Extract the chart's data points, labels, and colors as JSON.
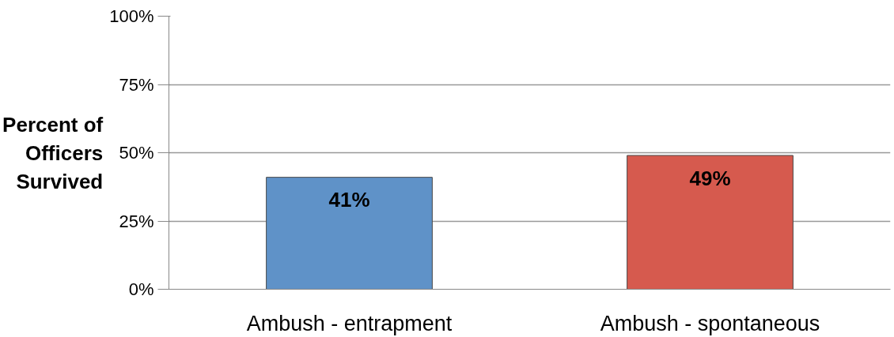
{
  "chart_data": {
    "type": "bar",
    "ylabel": "Percent of Officers Survived",
    "categories": [
      "Ambush - entrapment",
      "Ambush - spontaneous"
    ],
    "values": [
      41,
      49
    ],
    "colors": [
      "#5f92c8",
      "#d65a4e"
    ],
    "value_labels": [
      "41%",
      "49%"
    ],
    "ylim": [
      0,
      100
    ],
    "yticks": [
      {
        "value": 0,
        "label": "0%"
      },
      {
        "value": 25,
        "label": "25%"
      },
      {
        "value": 50,
        "label": "50%"
      },
      {
        "value": 75,
        "label": "75%"
      },
      {
        "value": 100,
        "label": "100%"
      }
    ],
    "grid": "y"
  }
}
